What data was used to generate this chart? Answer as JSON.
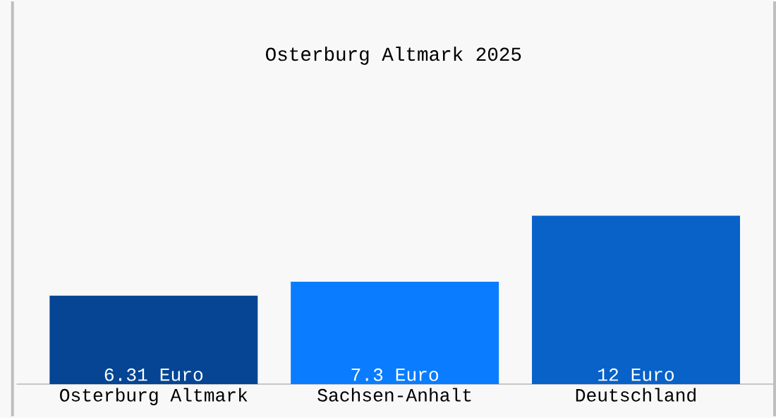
{
  "chart_data": {
    "type": "bar",
    "title": "Osterburg Altmark 2025",
    "categories": [
      "Osterburg Altmark",
      "Sachsen-Anhalt",
      "Deutschland"
    ],
    "values": [
      6.31,
      7.3,
      12
    ],
    "value_labels": [
      "6.31 Euro",
      "7.3 Euro",
      "12 Euro"
    ],
    "colors": [
      "#054594",
      "#0a7cff",
      "#0862c8"
    ]
  }
}
